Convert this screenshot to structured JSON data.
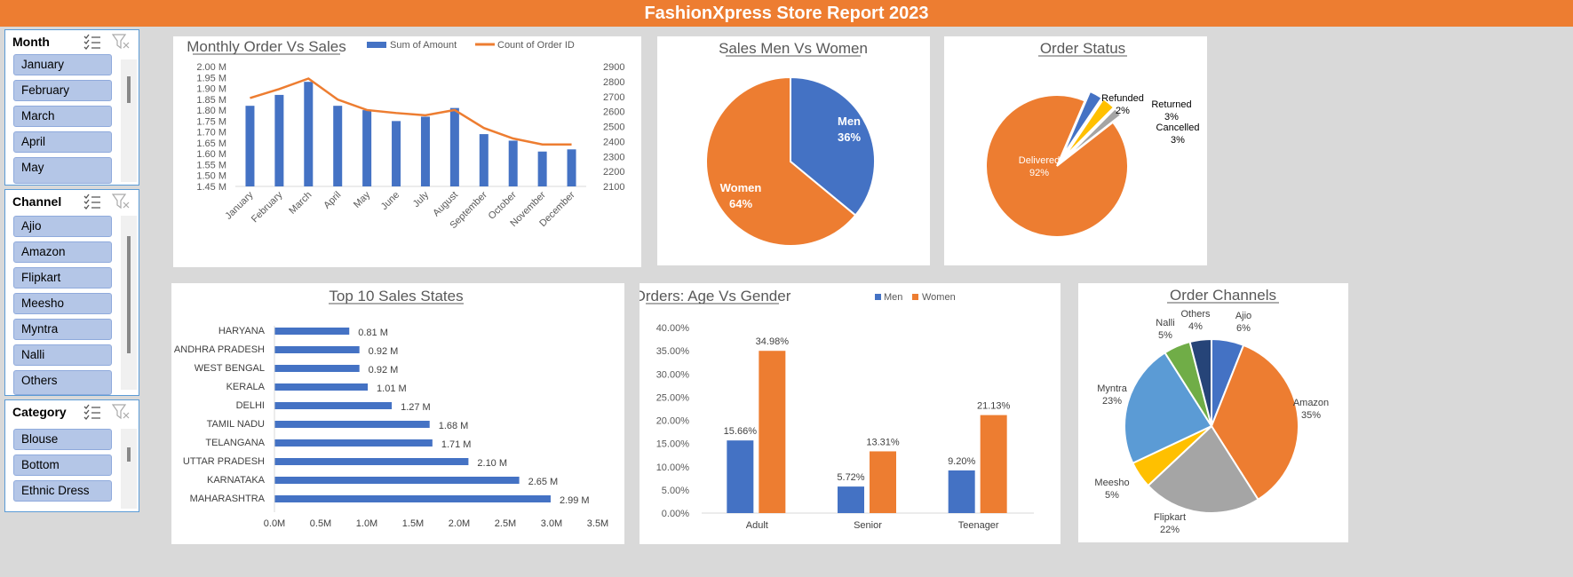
{
  "title": "FashionXpress Store Report 2023",
  "slicers": [
    {
      "title": "Month",
      "items": [
        "January",
        "February",
        "March",
        "April",
        "May"
      ]
    },
    {
      "title": "Channel",
      "items": [
        "Ajio",
        "Amazon",
        "Flipkart",
        "Meesho",
        "Myntra",
        "Nalli",
        "Others"
      ]
    },
    {
      "title": "Category",
      "items": [
        "Blouse",
        "Bottom",
        "Ethnic Dress"
      ]
    }
  ],
  "colors": {
    "blue": "#4472c4",
    "orange": "#ed7d31",
    "gray": "#a5a5a5",
    "yellow": "#ffc000",
    "lightblue": "#5b9bd5",
    "green": "#70ad47",
    "navy": "#264478",
    "title_bar": "#ed7d31"
  },
  "chart_data": [
    {
      "id": "monthly",
      "type": "bar",
      "title": "Monthly Order Vs Sales",
      "categories": [
        "January",
        "February",
        "March",
        "April",
        "May",
        "June",
        "July",
        "August",
        "September",
        "October",
        "November",
        "December"
      ],
      "series": [
        {
          "name": "Sum of Amount",
          "type": "bar",
          "axis": "left",
          "values": [
            1.82,
            1.87,
            1.93,
            1.82,
            1.8,
            1.75,
            1.77,
            1.81,
            1.69,
            1.66,
            1.61,
            1.62
          ]
        },
        {
          "name": "Count of Order ID",
          "type": "line",
          "axis": "right",
          "values": [
            2690,
            2750,
            2820,
            2680,
            2610,
            2590,
            2575,
            2610,
            2490,
            2420,
            2380,
            2380
          ]
        }
      ],
      "y_left": {
        "min": 1.45,
        "max": 2.0,
        "ticks": [
          "2.00 M",
          "1.95 M",
          "1.90 M",
          "1.85 M",
          "1.80 M",
          "1.75 M",
          "1.70 M",
          "1.65 M",
          "1.60 M",
          "1.55 M",
          "1.50 M",
          "1.45 M"
        ]
      },
      "y_right": {
        "min": 2100,
        "max": 2900,
        "ticks": [
          "2900",
          "2800",
          "2700",
          "2600",
          "2500",
          "2400",
          "2300",
          "2200",
          "2100"
        ]
      },
      "legend": "top"
    },
    {
      "id": "gender",
      "type": "pie",
      "title": "Sales Men Vs Women",
      "labels": [
        "Men",
        "Women"
      ],
      "values": [
        36,
        64
      ],
      "value_labels": [
        "36%",
        "64%"
      ]
    },
    {
      "id": "status",
      "type": "pie",
      "title": "Order Status",
      "labels": [
        "Delivered",
        "Cancelled",
        "Returned",
        "Refunded"
      ],
      "values": [
        92,
        3,
        3,
        2
      ],
      "value_labels": [
        "92%",
        "3%",
        "3%",
        "2%"
      ]
    },
    {
      "id": "states",
      "type": "bar",
      "orientation": "horizontal",
      "title": "Top 10 Sales States",
      "categories": [
        "HARYANA",
        "ANDHRA PRADESH",
        "WEST BENGAL",
        "KERALA",
        "DELHI",
        "TAMIL NADU",
        "TELANGANA",
        "UTTAR PRADESH",
        "KARNATAKA",
        "MAHARASHTRA"
      ],
      "values": [
        0.81,
        0.92,
        0.92,
        1.01,
        1.27,
        1.68,
        1.71,
        2.1,
        2.65,
        2.99
      ],
      "value_labels": [
        "0.81 M",
        "0.92 M",
        "0.92 M",
        "1.01 M",
        "1.27 M",
        "1.68 M",
        "1.71 M",
        "2.10 M",
        "2.65 M",
        "2.99 M"
      ],
      "xlim": [
        0,
        3.5
      ],
      "x_ticks": [
        "0.0M",
        "0.5M",
        "1.0M",
        "1.5M",
        "2.0M",
        "2.5M",
        "3.0M",
        "3.5M"
      ]
    },
    {
      "id": "agegender",
      "type": "bar",
      "title": "Orders: Age Vs Gender",
      "categories": [
        "Adult",
        "Senior",
        "Teenager"
      ],
      "series": [
        {
          "name": "Men",
          "values": [
            15.66,
            5.72,
            9.2
          ],
          "value_labels": [
            "15.66%",
            "5.72%",
            "9.20%"
          ]
        },
        {
          "name": "Women",
          "values": [
            34.98,
            13.31,
            21.13
          ],
          "value_labels": [
            "34.98%",
            "13.31%",
            "21.13%"
          ]
        }
      ],
      "ylim": [
        0,
        40
      ],
      "y_ticks": [
        "40.00%",
        "35.00%",
        "30.00%",
        "25.00%",
        "20.00%",
        "15.00%",
        "10.00%",
        "5.00%",
        "0.00%"
      ],
      "legend": "top"
    },
    {
      "id": "channels",
      "type": "pie",
      "title": "Order Channels",
      "labels": [
        "Ajio",
        "Amazon",
        "Flipkart",
        "Meesho",
        "Myntra",
        "Nalli",
        "Others"
      ],
      "values": [
        6,
        35,
        22,
        5,
        23,
        5,
        4
      ],
      "value_labels": [
        "6%",
        "35%",
        "22%",
        "5%",
        "23%",
        "5%",
        "4%"
      ]
    }
  ]
}
